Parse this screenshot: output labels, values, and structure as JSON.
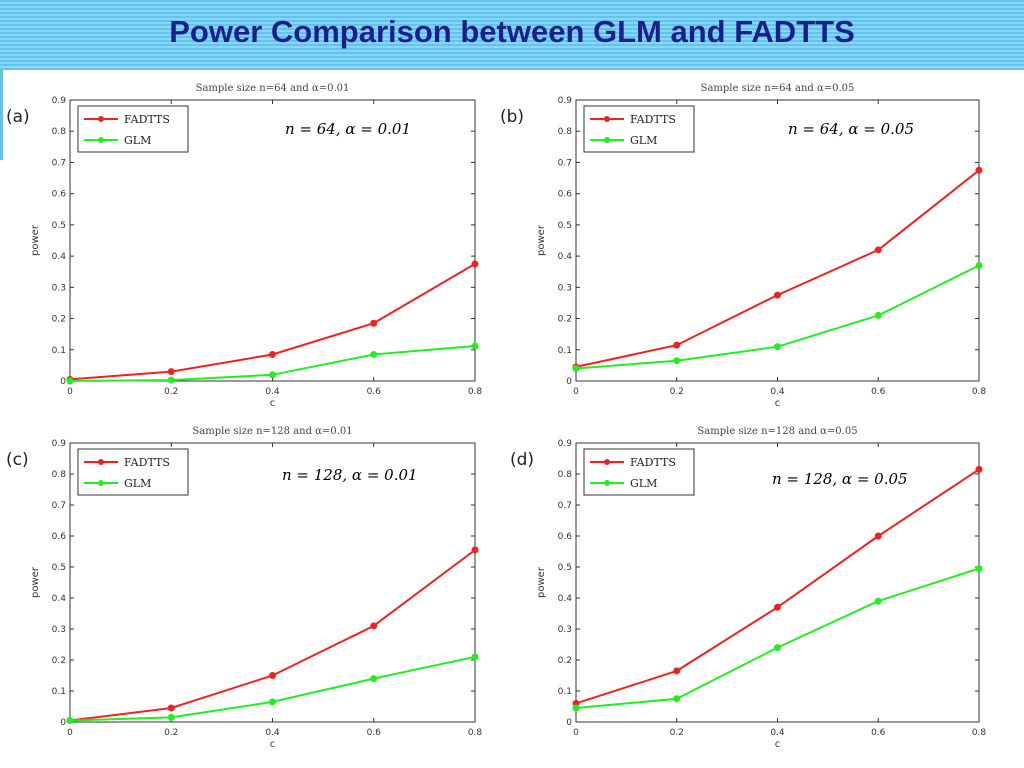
{
  "page": {
    "title": "Power Comparison between GLM and FADTTS"
  },
  "colors": {
    "banner": "#5fc4ef",
    "title": "#1a1f8c",
    "fadtts": "#ee2222",
    "glm": "#22ee22"
  },
  "chart_data": [
    {
      "panel": "(a)",
      "type": "line",
      "title": "Sample size n=64 and α=0.01",
      "annotation": "n = 64,  α = 0.01",
      "xlabel": "c",
      "ylabel": "power",
      "xlim": [
        0,
        0.8
      ],
      "ylim": [
        0,
        0.9
      ],
      "xticks": [
        "0",
        "0.2",
        "0.4",
        "0.6",
        "0.8"
      ],
      "yticks": [
        "0",
        "0.1",
        "0.2",
        "0.3",
        "0.4",
        "0.5",
        "0.6",
        "0.7",
        "0.8",
        "0.9"
      ],
      "legend": "top-left",
      "x": [
        0,
        0.2,
        0.4,
        0.6,
        0.8
      ],
      "series": [
        {
          "name": "FADTTS",
          "values": [
            0.005,
            0.03,
            0.085,
            0.185,
            0.375
          ]
        },
        {
          "name": "GLM",
          "values": [
            0.0,
            0.003,
            0.02,
            0.085,
            0.112
          ]
        }
      ]
    },
    {
      "panel": "(b)",
      "type": "line",
      "title": "Sample size n=64 and α=0.05",
      "annotation": "n = 64,  α = 0.05",
      "xlabel": "c",
      "ylabel": "power",
      "xlim": [
        0,
        0.8
      ],
      "ylim": [
        0,
        0.9
      ],
      "xticks": [
        "0",
        "0.2",
        "0.4",
        "0.6",
        "0.8"
      ],
      "yticks": [
        "0",
        "0.1",
        "0.2",
        "0.3",
        "0.4",
        "0.5",
        "0.6",
        "0.7",
        "0.8",
        "0.9"
      ],
      "legend": "top-left",
      "x": [
        0,
        0.2,
        0.4,
        0.6,
        0.8
      ],
      "series": [
        {
          "name": "FADTTS",
          "values": [
            0.045,
            0.115,
            0.275,
            0.42,
            0.675
          ]
        },
        {
          "name": "GLM",
          "values": [
            0.04,
            0.065,
            0.11,
            0.21,
            0.37
          ]
        }
      ]
    },
    {
      "panel": "(c)",
      "type": "line",
      "title": "Sample size n=128 and α=0.01",
      "annotation": "n = 128,  α = 0.01",
      "xlabel": "c",
      "ylabel": "power",
      "xlim": [
        0,
        0.8
      ],
      "ylim": [
        0,
        0.9
      ],
      "xticks": [
        "0",
        "0.2",
        "0.4",
        "0.6",
        "0.8"
      ],
      "yticks": [
        "0",
        "0.1",
        "0.2",
        "0.3",
        "0.4",
        "0.5",
        "0.6",
        "0.7",
        "0.8",
        "0.9"
      ],
      "legend": "top-left",
      "x": [
        0,
        0.2,
        0.4,
        0.6,
        0.8
      ],
      "series": [
        {
          "name": "FADTTS",
          "values": [
            0.005,
            0.045,
            0.15,
            0.31,
            0.555
          ]
        },
        {
          "name": "GLM",
          "values": [
            0.005,
            0.015,
            0.065,
            0.14,
            0.21
          ]
        }
      ]
    },
    {
      "panel": "(d)",
      "type": "line",
      "title": "Sample size n=128 and α=0.05",
      "annotation": "n = 128,  α = 0.05",
      "xlabel": "c",
      "ylabel": "power",
      "xlim": [
        0,
        0.8
      ],
      "ylim": [
        0,
        0.9
      ],
      "xticks": [
        "0",
        "0.2",
        "0.4",
        "0.6",
        "0.8"
      ],
      "yticks": [
        "0",
        "0.1",
        "0.2",
        "0.3",
        "0.4",
        "0.5",
        "0.6",
        "0.7",
        "0.8",
        "0.9"
      ],
      "legend": "top-left",
      "x": [
        0,
        0.2,
        0.4,
        0.6,
        0.8
      ],
      "series": [
        {
          "name": "FADTTS",
          "values": [
            0.06,
            0.165,
            0.37,
            0.6,
            0.815
          ]
        },
        {
          "name": "GLM",
          "values": [
            0.045,
            0.075,
            0.24,
            0.39,
            0.495
          ]
        }
      ]
    }
  ]
}
